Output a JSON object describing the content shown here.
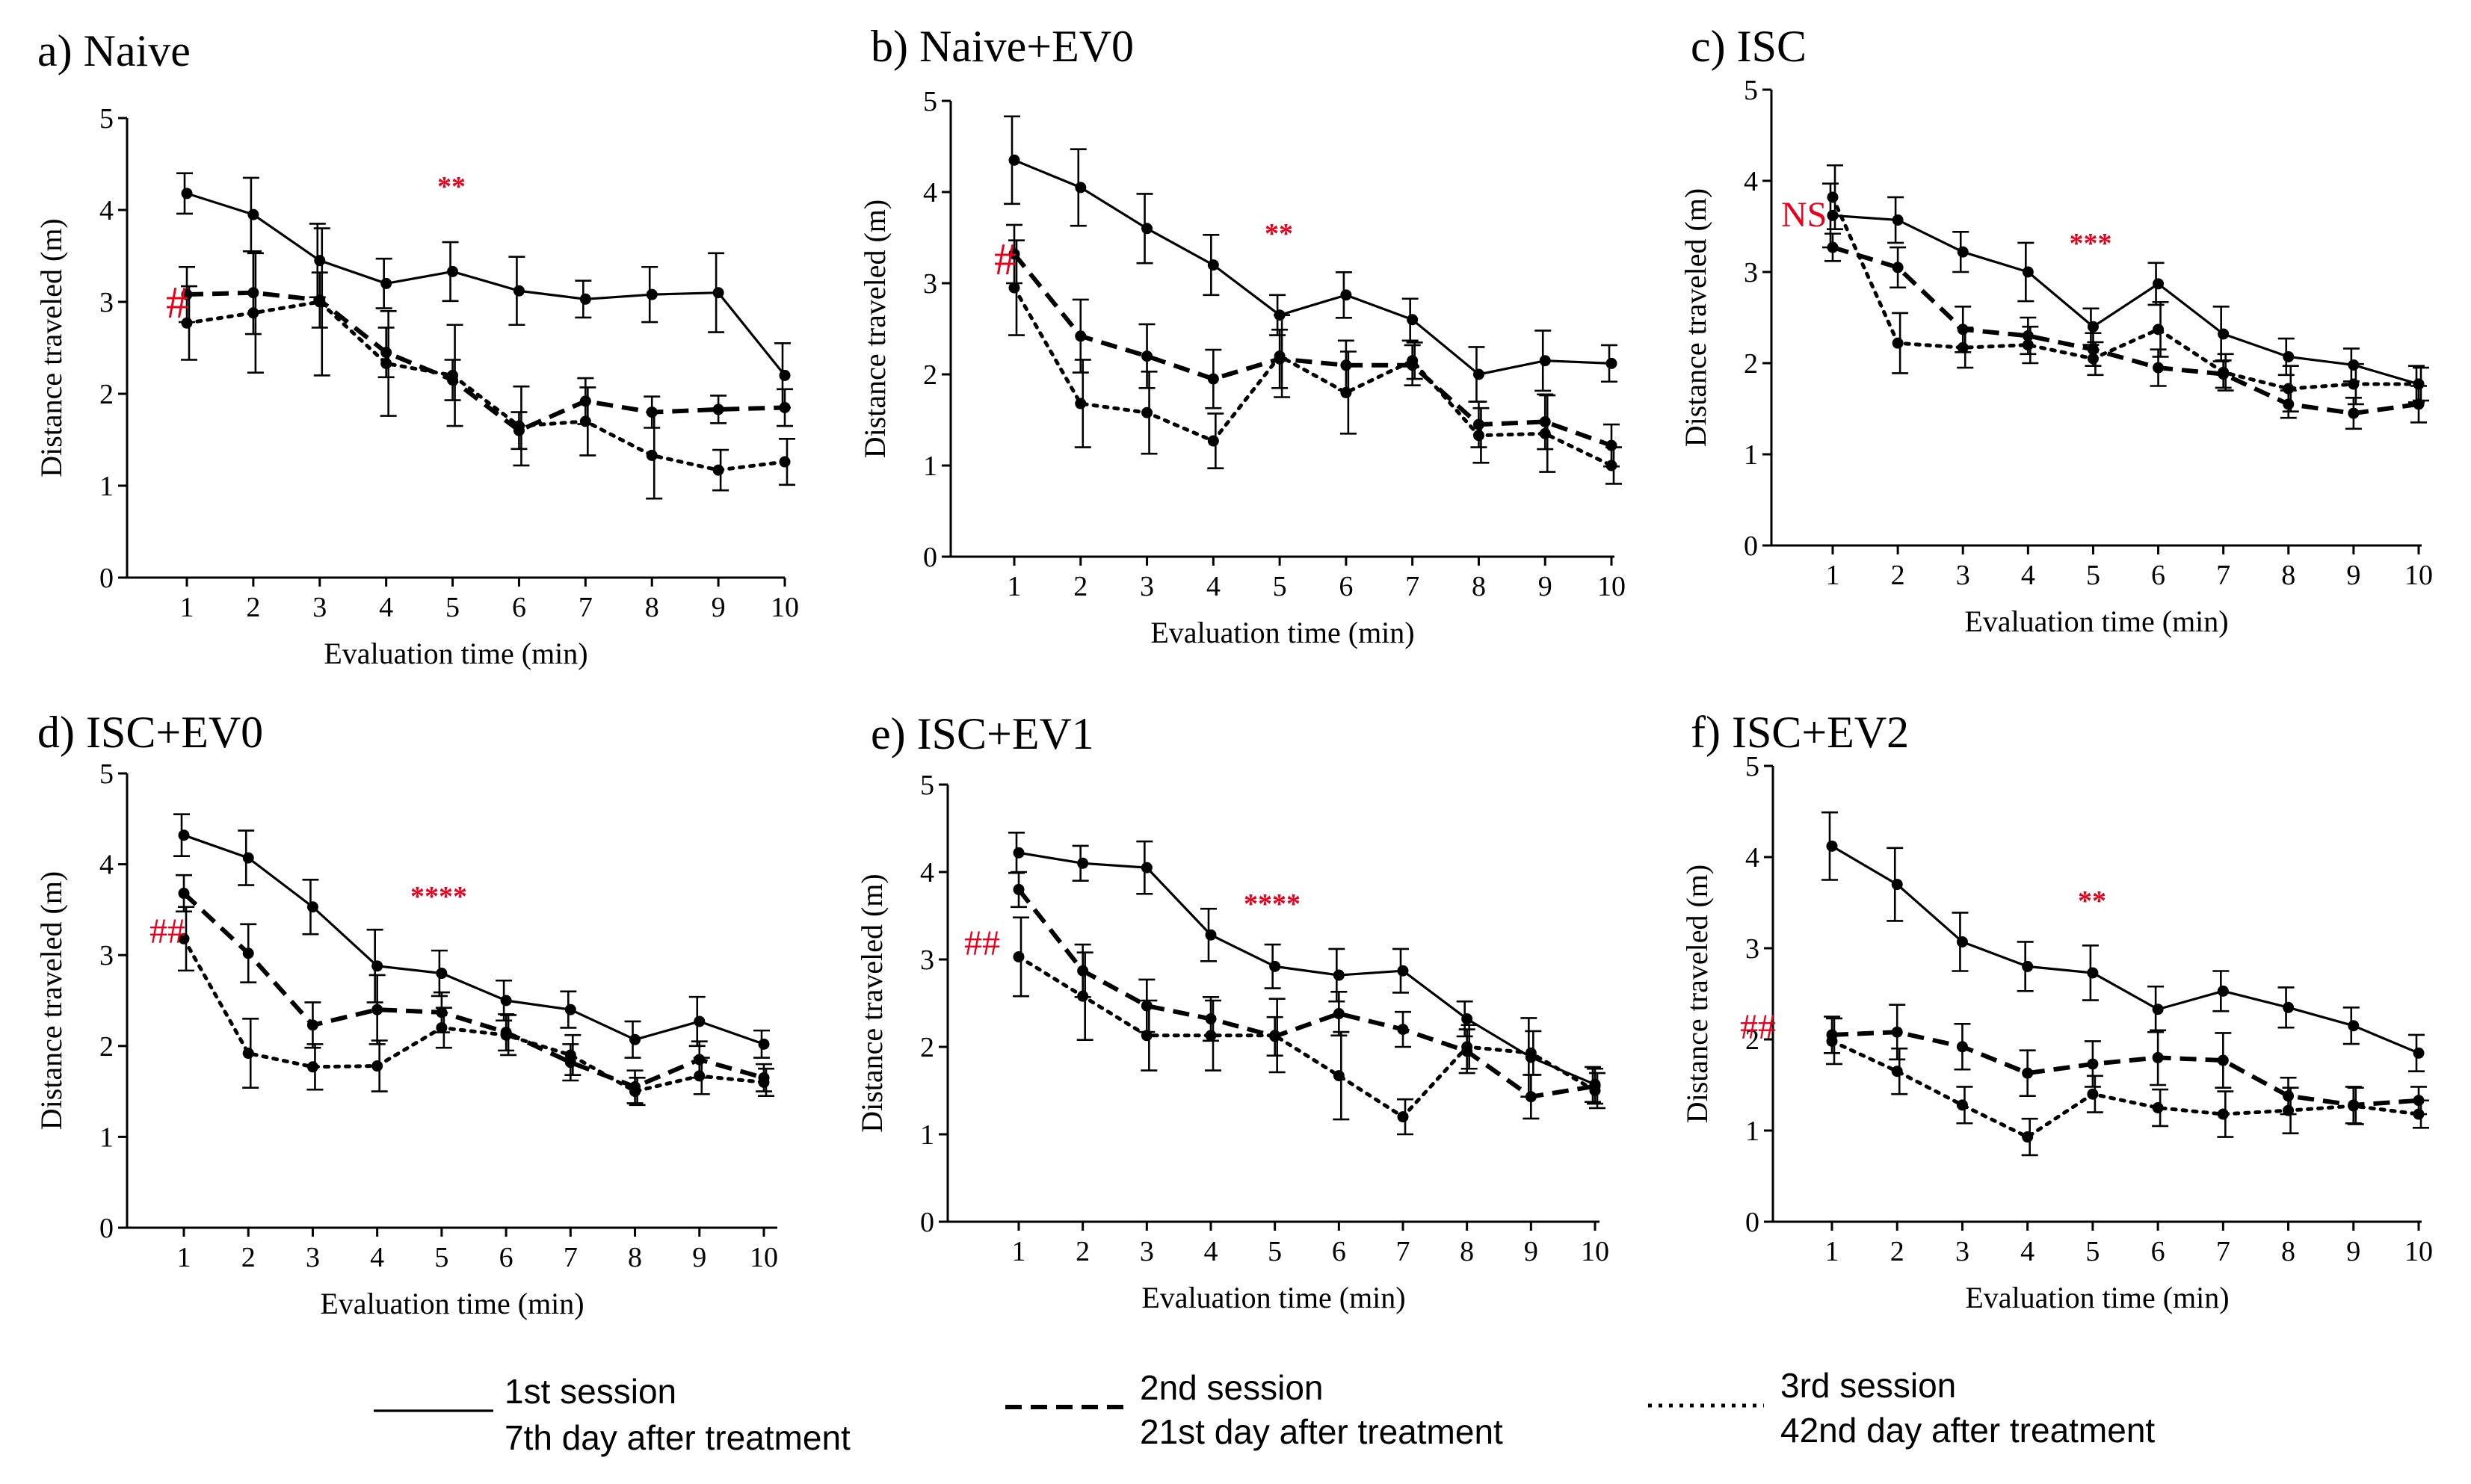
{
  "chart_data": [
    {
      "type": "line",
      "title": "a) Naive",
      "xlabel": "Evaluation time (min)",
      "ylabel": "Distance traveled (m)",
      "ylim": [
        0,
        5
      ],
      "x": [
        1,
        2,
        3,
        4,
        5,
        6,
        7,
        8,
        9,
        10
      ],
      "yticks": [
        0,
        1,
        2,
        3,
        4,
        5
      ],
      "series": [
        {
          "name": "1st session",
          "values": [
            4.18,
            3.95,
            3.45,
            3.2,
            3.33,
            3.12,
            3.03,
            3.08,
            3.1,
            2.2
          ],
          "errors": [
            0.22,
            0.4,
            0.4,
            0.27,
            0.32,
            0.37,
            0.2,
            0.3,
            0.43,
            0.35
          ]
        },
        {
          "name": "2nd session",
          "values": [
            3.08,
            3.1,
            3.02,
            2.45,
            2.15,
            1.6,
            1.92,
            1.8,
            1.83,
            1.85
          ],
          "errors": [
            0.3,
            0.45,
            0.3,
            0.27,
            0.22,
            0.2,
            0.25,
            0.17,
            0.15,
            0.2
          ]
        },
        {
          "name": "3rd session",
          "values": [
            2.77,
            2.88,
            3.0,
            2.33,
            2.2,
            1.65,
            1.7,
            1.33,
            1.17,
            1.26
          ],
          "errors": [
            0.4,
            0.65,
            0.8,
            0.57,
            0.55,
            0.43,
            0.37,
            0.47,
            0.22,
            0.25
          ]
        }
      ],
      "annotations": {
        "significance": "**",
        "group_marker": "#"
      }
    },
    {
      "type": "line",
      "title": "b) Naive+EV0",
      "xlabel": "Evaluation time (min)",
      "ylabel": "Distance traveled (m)",
      "ylim": [
        0,
        5
      ],
      "x": [
        1,
        2,
        3,
        4,
        5,
        6,
        7,
        8,
        9,
        10
      ],
      "yticks": [
        0,
        1,
        2,
        3,
        4,
        5
      ],
      "series": [
        {
          "name": "1st session",
          "values": [
            4.35,
            4.05,
            3.6,
            3.2,
            2.65,
            2.87,
            2.6,
            2.0,
            2.15,
            2.12
          ],
          "errors": [
            0.48,
            0.42,
            0.38,
            0.33,
            0.22,
            0.25,
            0.23,
            0.3,
            0.33,
            0.2
          ]
        },
        {
          "name": "2nd session",
          "values": [
            3.32,
            2.42,
            2.2,
            1.95,
            2.17,
            2.1,
            2.1,
            1.45,
            1.48,
            1.22
          ],
          "errors": [
            0.32,
            0.4,
            0.35,
            0.32,
            0.32,
            0.27,
            0.22,
            0.25,
            0.3,
            0.23
          ]
        },
        {
          "name": "3rd session",
          "values": [
            2.95,
            1.68,
            1.58,
            1.27,
            2.2,
            1.8,
            2.15,
            1.33,
            1.35,
            1.0
          ],
          "errors": [
            0.52,
            0.48,
            0.45,
            0.3,
            0.45,
            0.45,
            0.2,
            0.3,
            0.42,
            0.2
          ]
        }
      ],
      "annotations": {
        "significance": "**",
        "group_marker": "#"
      }
    },
    {
      "type": "line",
      "title": "c) ISC",
      "xlabel": "Evaluation time (min)",
      "ylabel": "Distance traveled (m)",
      "ylim": [
        0,
        5
      ],
      "x": [
        1,
        2,
        3,
        4,
        5,
        6,
        7,
        8,
        9,
        10
      ],
      "yticks": [
        0,
        1,
        2,
        3,
        4,
        5
      ],
      "series": [
        {
          "name": "1st session",
          "values": [
            3.62,
            3.57,
            3.22,
            3.0,
            2.4,
            2.87,
            2.32,
            2.07,
            1.98,
            1.77
          ],
          "errors": [
            0.35,
            0.25,
            0.22,
            0.32,
            0.2,
            0.23,
            0.3,
            0.2,
            0.18,
            0.2
          ]
        },
        {
          "name": "2nd session",
          "values": [
            3.27,
            3.05,
            2.37,
            2.3,
            2.15,
            1.95,
            1.88,
            1.55,
            1.45,
            1.55
          ],
          "errors": [
            0.15,
            0.22,
            0.25,
            0.2,
            0.18,
            0.2,
            0.15,
            0.15,
            0.17,
            0.2
          ]
        },
        {
          "name": "3rd session",
          "values": [
            3.82,
            2.22,
            2.17,
            2.2,
            2.05,
            2.37,
            1.9,
            1.72,
            1.77,
            1.77
          ],
          "errors": [
            0.35,
            0.33,
            0.22,
            0.2,
            0.18,
            0.3,
            0.2,
            0.25,
            0.22,
            0.18
          ]
        }
      ],
      "annotations": {
        "significance": "***",
        "group_marker": "NS"
      }
    },
    {
      "type": "line",
      "title": "d) ISC+EV0",
      "xlabel": "Evaluation time (min)",
      "ylabel": "Distance traveled (m)",
      "ylim": [
        0,
        5
      ],
      "x": [
        1,
        2,
        3,
        4,
        5,
        6,
        7,
        8,
        9,
        10
      ],
      "yticks": [
        0,
        1,
        2,
        3,
        4,
        5
      ],
      "series": [
        {
          "name": "1st session",
          "values": [
            4.32,
            4.07,
            3.53,
            2.88,
            2.8,
            2.5,
            2.4,
            2.07,
            2.27,
            2.02
          ],
          "errors": [
            0.23,
            0.3,
            0.3,
            0.4,
            0.25,
            0.22,
            0.2,
            0.2,
            0.27,
            0.15
          ]
        },
        {
          "name": "2nd session",
          "values": [
            3.68,
            3.02,
            2.23,
            2.4,
            2.37,
            2.15,
            1.82,
            1.55,
            1.85,
            1.65
          ],
          "errors": [
            0.2,
            0.32,
            0.25,
            0.38,
            0.22,
            0.2,
            0.2,
            0.18,
            0.2,
            0.15
          ]
        },
        {
          "name": "3rd session",
          "values": [
            3.18,
            1.92,
            1.77,
            1.78,
            2.2,
            2.12,
            1.9,
            1.5,
            1.67,
            1.6
          ],
          "errors": [
            0.35,
            0.38,
            0.25,
            0.28,
            0.22,
            0.22,
            0.22,
            0.15,
            0.2,
            0.15
          ]
        }
      ],
      "annotations": {
        "significance": "****",
        "group_marker": "##"
      }
    },
    {
      "type": "line",
      "title": "e) ISC+EV1",
      "xlabel": "Evaluation time (min)",
      "ylabel": "Distance traveled (m)",
      "ylim": [
        0,
        5
      ],
      "x": [
        1,
        2,
        3,
        4,
        5,
        6,
        7,
        8,
        9,
        10
      ],
      "yticks": [
        0,
        1,
        2,
        3,
        4,
        5
      ],
      "series": [
        {
          "name": "1st session",
          "values": [
            4.22,
            4.1,
            4.05,
            3.28,
            2.92,
            2.82,
            2.87,
            2.32,
            1.88,
            1.57
          ],
          "errors": [
            0.23,
            0.2,
            0.3,
            0.3,
            0.25,
            0.3,
            0.25,
            0.2,
            0.45,
            0.2
          ]
        },
        {
          "name": "2nd session",
          "values": [
            3.8,
            2.87,
            2.47,
            2.32,
            2.12,
            2.38,
            2.2,
            1.95,
            1.43,
            1.55
          ],
          "errors": [
            0.2,
            0.3,
            0.3,
            0.25,
            0.22,
            0.25,
            0.2,
            0.25,
            0.25,
            0.2
          ]
        },
        {
          "name": "3rd session",
          "values": [
            3.03,
            2.58,
            2.13,
            2.13,
            2.13,
            1.67,
            1.2,
            2.0,
            1.93,
            1.5
          ],
          "errors": [
            0.45,
            0.5,
            0.4,
            0.4,
            0.42,
            0.5,
            0.2,
            0.25,
            0.25,
            0.2
          ]
        }
      ],
      "annotations": {
        "significance": "****",
        "group_marker": "##"
      }
    },
    {
      "type": "line",
      "title": "f) ISC+EV2",
      "xlabel": "Evaluation time (min)",
      "ylabel": "Distance traveled (m)",
      "ylim": [
        0,
        5
      ],
      "x": [
        1,
        2,
        3,
        4,
        5,
        6,
        7,
        8,
        9,
        10
      ],
      "yticks": [
        0,
        1,
        2,
        3,
        4,
        5
      ],
      "series": [
        {
          "name": "1st session",
          "values": [
            4.12,
            3.7,
            3.07,
            2.8,
            2.73,
            2.33,
            2.53,
            2.35,
            2.15,
            1.85
          ],
          "errors": [
            0.37,
            0.4,
            0.32,
            0.27,
            0.3,
            0.25,
            0.22,
            0.22,
            0.2,
            0.2
          ]
        },
        {
          "name": "2nd session",
          "values": [
            2.05,
            2.08,
            1.92,
            1.63,
            1.73,
            1.8,
            1.77,
            1.38,
            1.28,
            1.33
          ],
          "errors": [
            0.2,
            0.3,
            0.25,
            0.25,
            0.25,
            0.3,
            0.3,
            0.2,
            0.2,
            0.15
          ]
        },
        {
          "name": "3rd session",
          "values": [
            1.98,
            1.65,
            1.28,
            0.93,
            1.4,
            1.25,
            1.18,
            1.22,
            1.27,
            1.18
          ],
          "errors": [
            0.25,
            0.25,
            0.2,
            0.2,
            0.2,
            0.2,
            0.25,
            0.25,
            0.2,
            0.15
          ]
        }
      ],
      "annotations": {
        "significance": "**",
        "group_marker": "##"
      }
    }
  ],
  "legend": [
    {
      "style": "solid",
      "line1": "1st session",
      "line2": "7th day after treatment"
    },
    {
      "style": "dashed",
      "line1": "2nd session",
      "line2": "21st day after treatment"
    },
    {
      "style": "dotted",
      "line1": "3rd session",
      "line2": "42nd day after treatment"
    }
  ],
  "colors": {
    "ink": "#000000",
    "annotation": "#e8001c",
    "background": "#ffffff"
  }
}
